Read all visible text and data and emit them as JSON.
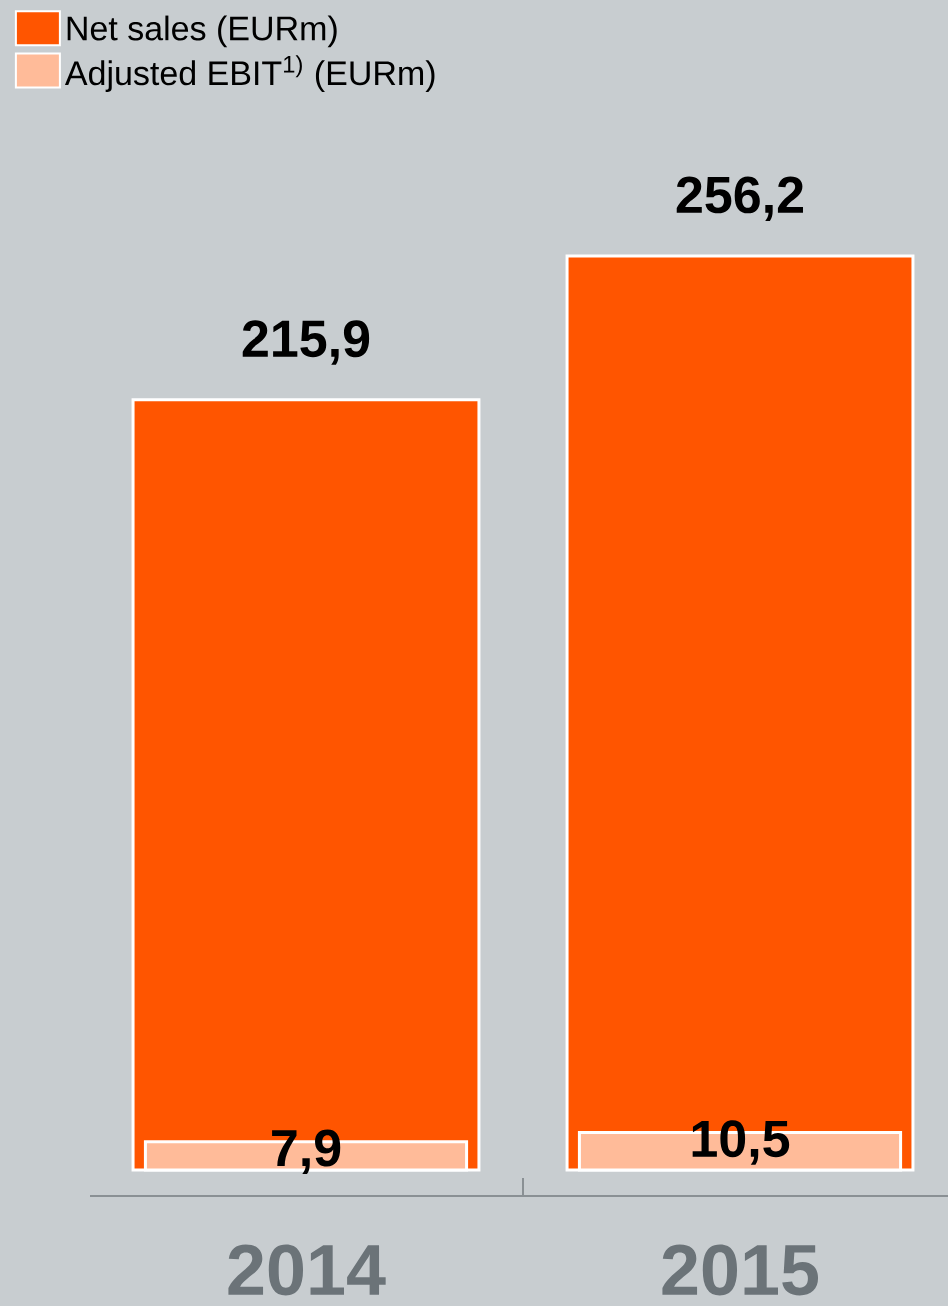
{
  "chart_data": {
    "type": "bar",
    "categories": [
      "2014",
      "2015"
    ],
    "series": [
      {
        "name": "Net sales (EURm)",
        "color": "#ff5500",
        "values": [
          215.9,
          256.2
        ],
        "value_labels": [
          "215,9",
          "256,2"
        ]
      },
      {
        "name": "Adjusted EBIT$^{1)}$ (EURm)",
        "color": "#ffbb99",
        "values": [
          7.9,
          10.5
        ],
        "value_labels": [
          "7,9",
          "10,5"
        ]
      }
    ],
    "legend": "top left"
  }
}
